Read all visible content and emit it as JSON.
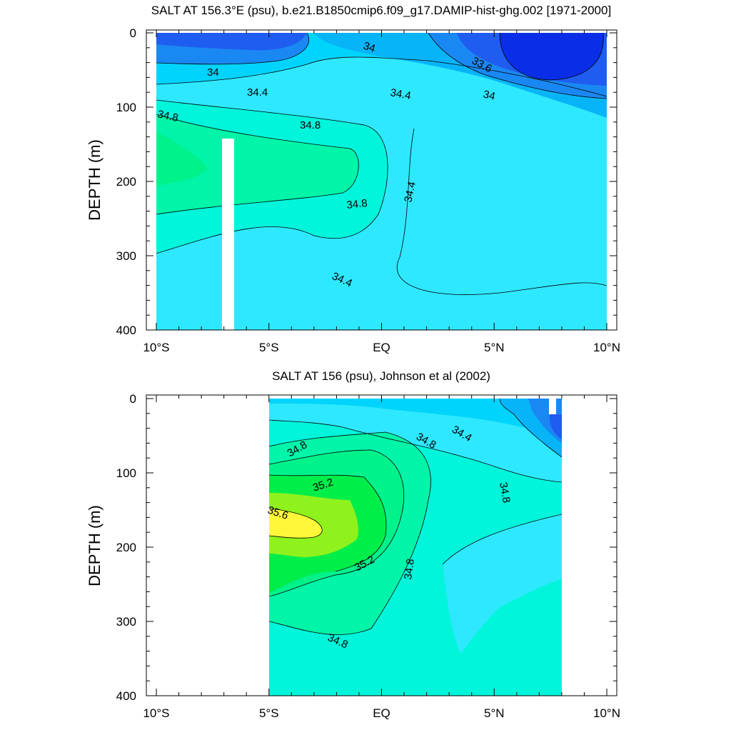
{
  "chart_data": [
    {
      "type": "contour",
      "title": "SALT AT 156.3°E (psu), b.e21.B1850cmip6.f09_g17.DAMIP-hist-ghg.002 [1971-2000]",
      "ylabel": "DEPTH (m)",
      "xlabel": "",
      "x_ticks": [
        "10°S",
        "5°S",
        "EQ",
        "5°N",
        "10°N"
      ],
      "y_ticks": [
        "0",
        "100",
        "200",
        "300",
        "400"
      ],
      "xlim": [
        -10,
        10
      ],
      "ylim": [
        400,
        0
      ],
      "contour_interval": 0.2,
      "contour_labels": [
        "34",
        "34",
        "33.6",
        "34.4",
        "34.4",
        "34",
        "34.8",
        "34.8",
        "34.4",
        "34.8",
        "34.4"
      ],
      "features": {
        "fresh_core_max_lat": 7.5,
        "fresh_core_min_value": 33.4,
        "salty_core_lat": -10,
        "salty_core_depth": 180,
        "salty_core_value": 34.9,
        "missing_column_lat": -7.1
      }
    },
    {
      "type": "contour",
      "title": "SALT AT 156 (psu), Johnson et al (2002)",
      "ylabel": "DEPTH (m)",
      "xlabel": "",
      "x_ticks": [
        "10°S",
        "5°S",
        "EQ",
        "5°N",
        "10°N"
      ],
      "y_ticks": [
        "0",
        "100",
        "200",
        "300",
        "400"
      ],
      "xlim": [
        -10,
        10
      ],
      "ylim": [
        400,
        0
      ],
      "data_xrange": [
        -5,
        8
      ],
      "contour_interval": 0.2,
      "contour_labels": [
        "34.8",
        "34.8",
        "34.4",
        "35.2",
        "34.8",
        "35.6",
        "35.2",
        "34.8",
        "34.8"
      ],
      "features": {
        "salty_core_lat": -4.5,
        "salty_core_depth": 170,
        "salty_core_value": 35.6
      }
    }
  ],
  "colors": {
    "c33_4": "#0a2ee8",
    "c33_6": "#1f5df0",
    "c33_8": "#1a88f2",
    "c34_0": "#08b4f8",
    "c34_2": "#00d4fc",
    "c34_4": "#2ee8ff",
    "c34_6": "#00f5da",
    "c34_8": "#00f5a8",
    "c35_0": "#00f28a",
    "c35_2": "#00ee4a",
    "c35_4": "#8ff21c",
    "c35_6": "#fff83a"
  }
}
